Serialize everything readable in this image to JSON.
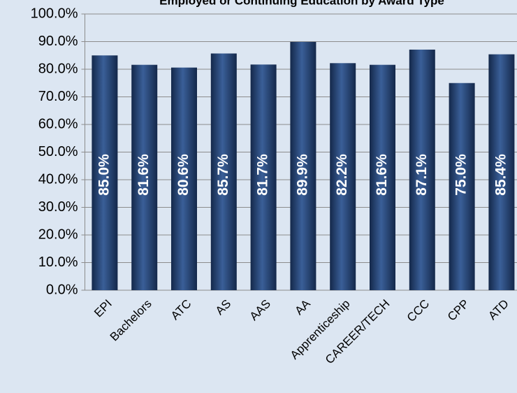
{
  "chart_data": {
    "type": "bar",
    "title": "Employed or Continuing Education by Award Type",
    "categories": [
      "EPI",
      "Bachelors",
      "ATC",
      "AS",
      "AAS",
      "AA",
      "Apprenticeship",
      "CAREER/TECH",
      "CCC",
      "CPP",
      "ATD"
    ],
    "values": [
      85.0,
      81.6,
      80.6,
      85.7,
      81.7,
      89.9,
      82.2,
      81.6,
      87.1,
      75.0,
      85.4
    ],
    "value_labels": [
      "85.0%",
      "81.6%",
      "80.6%",
      "85.7%",
      "81.7%",
      "89.9%",
      "82.2%",
      "81.6%",
      "87.1%",
      "75.0%",
      "85.4%"
    ],
    "color": "#1f3d6e",
    "ylim": [
      0,
      100
    ],
    "yticks": [
      {
        "value": 0,
        "label": "0.0%"
      },
      {
        "value": 10,
        "label": "10.0%"
      },
      {
        "value": 20,
        "label": "20.0%"
      },
      {
        "value": 30,
        "label": "30.0%"
      },
      {
        "value": 40,
        "label": "40.0%"
      },
      {
        "value": 50,
        "label": "50.0%"
      },
      {
        "value": 60,
        "label": "60.0%"
      },
      {
        "value": 70,
        "label": "70.0%"
      },
      {
        "value": 80,
        "label": "80.0%"
      },
      {
        "value": 90,
        "label": "90.0%"
      },
      {
        "value": 100,
        "label": "100.0%"
      }
    ],
    "grid": true
  }
}
